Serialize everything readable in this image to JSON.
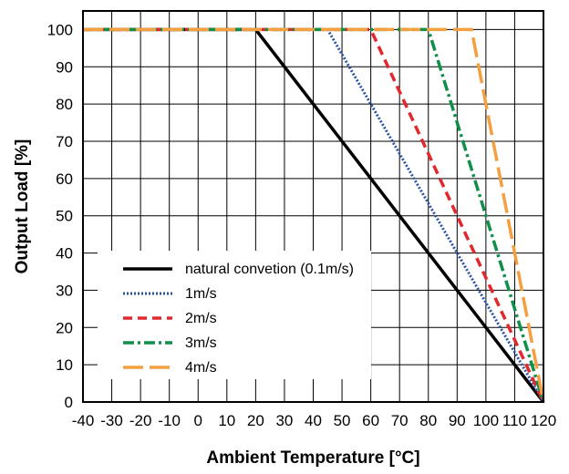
{
  "chart_data": {
    "type": "line",
    "xlabel": "Ambient Temperature [°C]",
    "ylabel": "Output Load [%]",
    "xlim": [
      -40,
      120
    ],
    "ylim": [
      0,
      105
    ],
    "xticks": [
      -40,
      -30,
      -20,
      -10,
      0,
      10,
      20,
      30,
      40,
      50,
      60,
      70,
      80,
      90,
      100,
      110,
      120
    ],
    "xtick_labels": [
      "-40",
      "-30",
      "-20",
      "-10",
      "0",
      "10",
      "20",
      "30",
      "40",
      "50",
      "60",
      "70",
      "80",
      "90",
      "100",
      "110",
      "120"
    ],
    "yticks": [
      0,
      10,
      20,
      30,
      40,
      50,
      60,
      70,
      80,
      90,
      100
    ],
    "ytick_labels": [
      "0",
      "10",
      "20",
      "30",
      "40",
      "50",
      "60",
      "70",
      "80",
      "90",
      "100"
    ],
    "grid": true,
    "legend_position": "bottom-left",
    "series": [
      {
        "name": "natural convetion (0.1m/s)",
        "color": "#000000",
        "dash": "solid",
        "x": [
          -40,
          20,
          120
        ],
        "y": [
          100,
          100,
          0
        ]
      },
      {
        "name": "1m/s",
        "color": "#2a52a8",
        "dash": "dotted",
        "x": [
          -40,
          45,
          120
        ],
        "y": [
          100,
          100,
          0
        ]
      },
      {
        "name": "2m/s",
        "color": "#e0282e",
        "dash": "dashed",
        "x": [
          -40,
          60,
          120
        ],
        "y": [
          100,
          100,
          0
        ]
      },
      {
        "name": "3m/s",
        "color": "#0f8f4a",
        "dash": "dashdot",
        "x": [
          -40,
          80,
          120
        ],
        "y": [
          100,
          100,
          0
        ]
      },
      {
        "name": "4m/s",
        "color": "#f4a040",
        "dash": "longdash",
        "x": [
          -40,
          95,
          120
        ],
        "y": [
          100,
          100,
          0
        ]
      }
    ]
  }
}
